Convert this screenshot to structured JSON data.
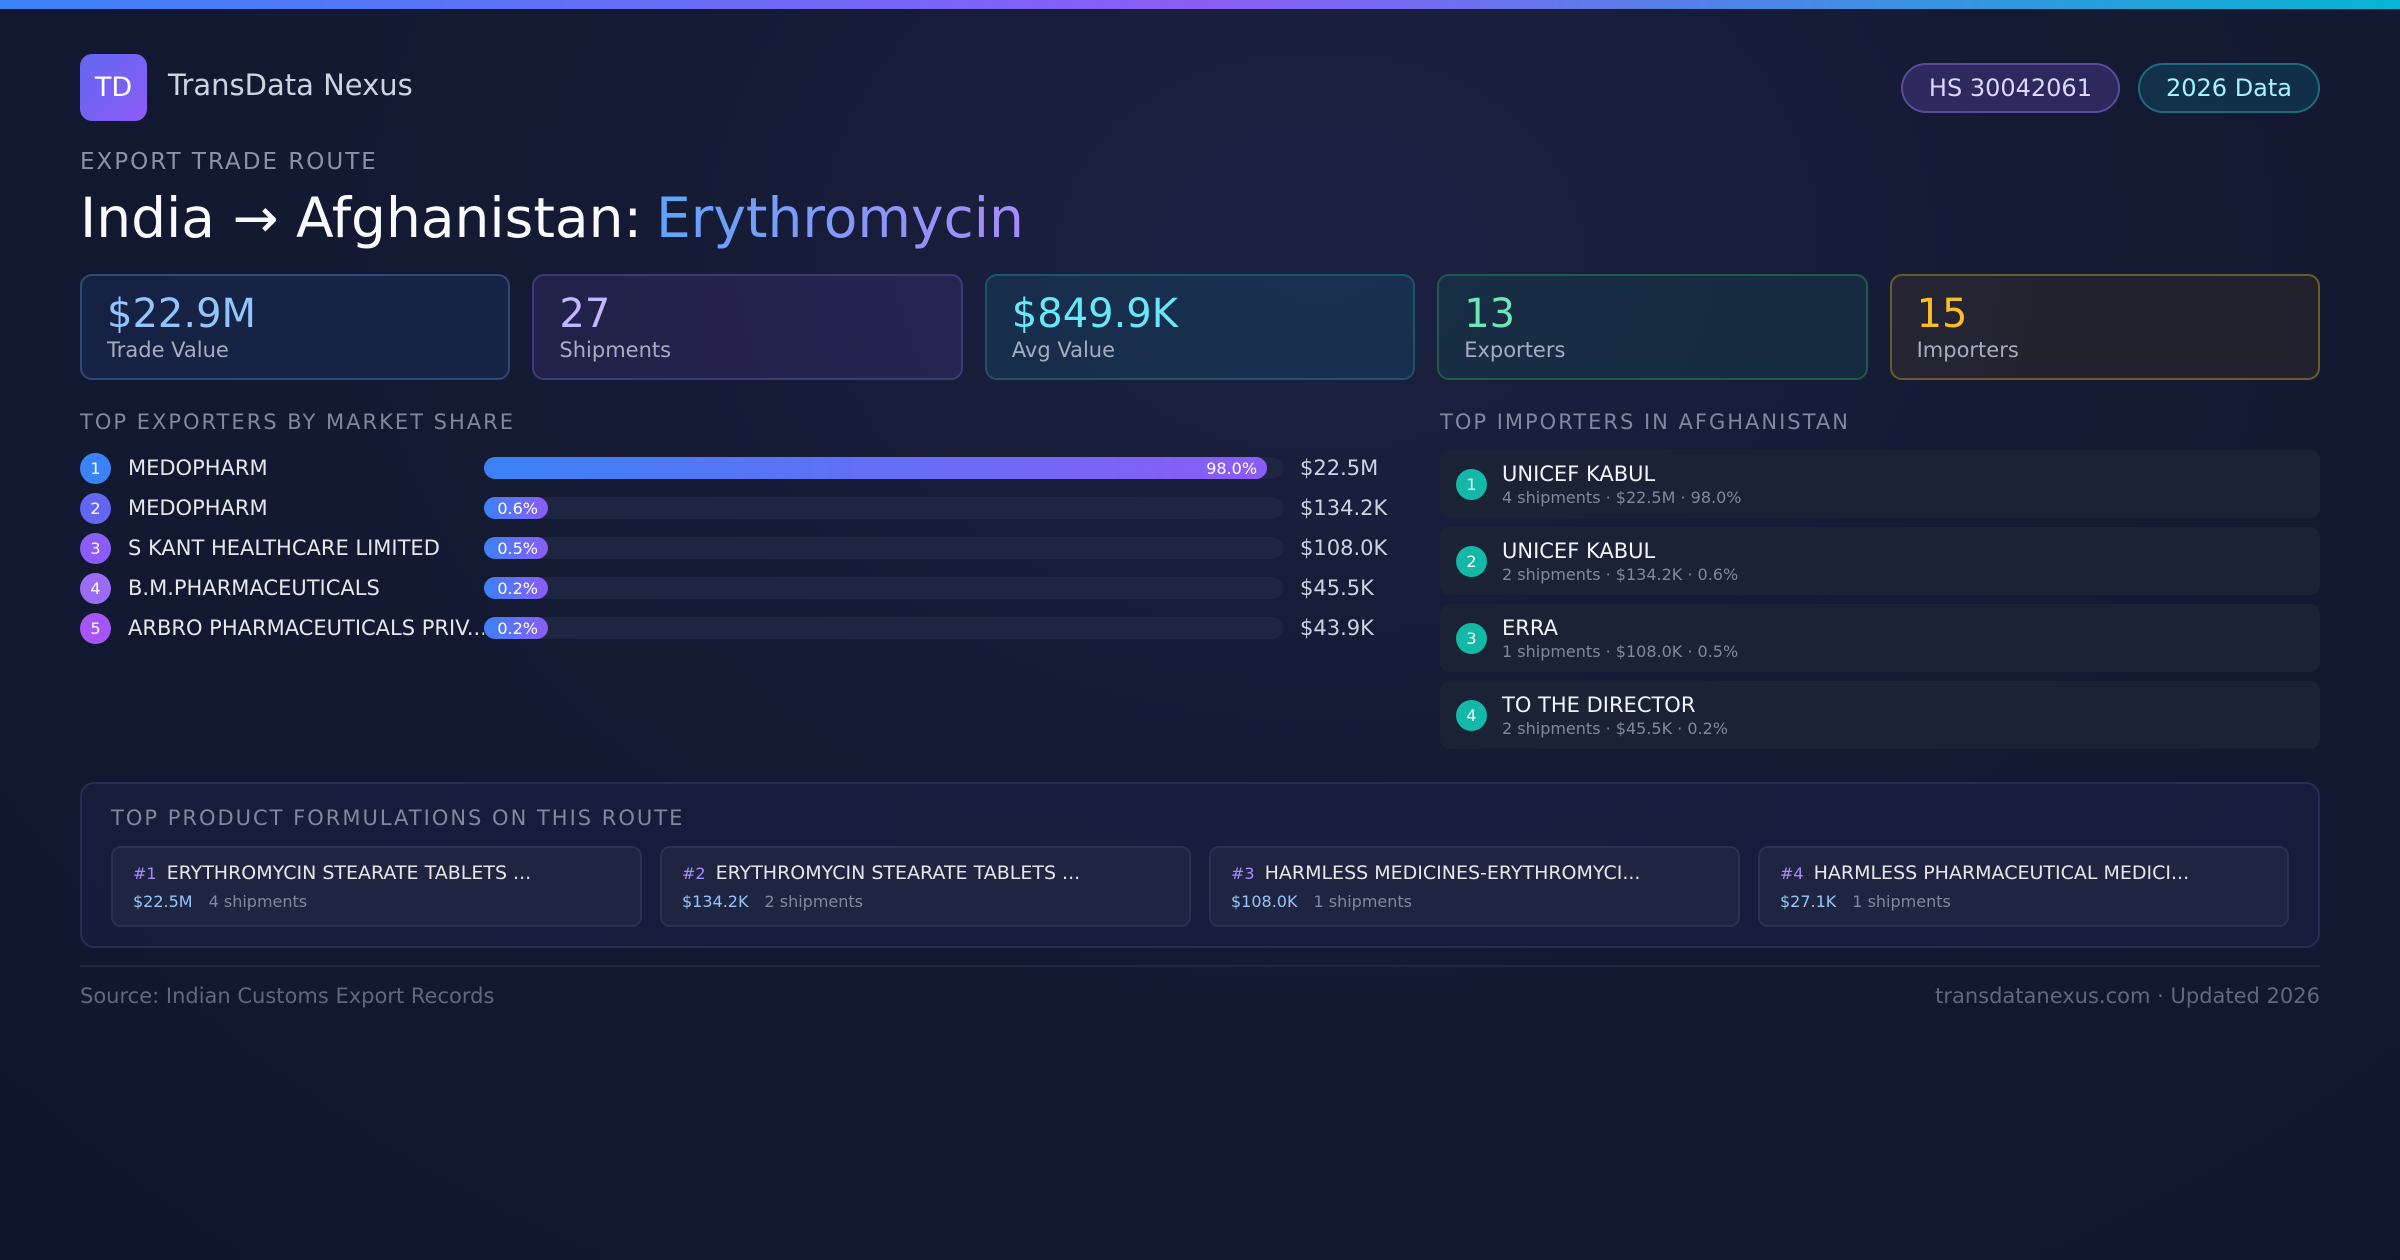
{
  "header": {
    "logo": "TD",
    "brand": "TransData Nexus",
    "badges": [
      "HS 30042061",
      "2026 Data"
    ]
  },
  "route": {
    "eyebrow": "EXPORT TRADE ROUTE",
    "title": "India → Afghanistan:",
    "product": "Erythromycin"
  },
  "stats": [
    {
      "value": "$22.9M",
      "label": "Trade Value"
    },
    {
      "value": "27",
      "label": "Shipments"
    },
    {
      "value": "$849.9K",
      "label": "Avg Value"
    },
    {
      "value": "13",
      "label": "Exporters"
    },
    {
      "value": "15",
      "label": "Importers"
    }
  ],
  "exporters": {
    "heading": "TOP EXPORTERS BY MARKET SHARE",
    "rows": [
      {
        "rank": "1",
        "name": "MEDOPHARM",
        "share": 98.0,
        "share_label": "98.0%",
        "value": "$22.5M"
      },
      {
        "rank": "2",
        "name": "MEDOPHARM",
        "share": 0.6,
        "share_label": "0.6%",
        "value": "$134.2K"
      },
      {
        "rank": "3",
        "name": "S KANT HEALTHCARE LIMITED",
        "share": 0.5,
        "share_label": "0.5%",
        "value": "$108.0K"
      },
      {
        "rank": "4",
        "name": "B.M.PHARMACEUTICALS",
        "share": 0.2,
        "share_label": "0.2%",
        "value": "$45.5K"
      },
      {
        "rank": "5",
        "name": "ARBRO PHARMACEUTICALS PRIV...",
        "share": 0.2,
        "share_label": "0.2%",
        "value": "$43.9K"
      }
    ]
  },
  "importers": {
    "heading": "TOP IMPORTERS IN AFGHANISTAN",
    "rows": [
      {
        "rank": "1",
        "name": "UNICEF KABUL",
        "detail": "4 shipments · $22.5M · 98.0%"
      },
      {
        "rank": "2",
        "name": "UNICEF KABUL",
        "detail": "2 shipments · $134.2K · 0.6%"
      },
      {
        "rank": "3",
        "name": "ERRA",
        "detail": "1 shipments · $108.0K · 0.5%"
      },
      {
        "rank": "4",
        "name": "TO THE DIRECTOR",
        "detail": "2 shipments · $45.5K · 0.2%"
      }
    ]
  },
  "products": {
    "heading": "TOP PRODUCT FORMULATIONS ON THIS ROUTE",
    "items": [
      {
        "rank": "#1",
        "name": "ERYTHROMYCIN STEARATE TABLETS ...",
        "value": "$22.5M",
        "shipments": "4 shipments"
      },
      {
        "rank": "#2",
        "name": "ERYTHROMYCIN STEARATE TABLETS ...",
        "value": "$134.2K",
        "shipments": "2 shipments"
      },
      {
        "rank": "#3",
        "name": "HARMLESS MEDICINES-ERYTHROMYCI...",
        "value": "$108.0K",
        "shipments": "1 shipments"
      },
      {
        "rank": "#4",
        "name": "HARMLESS PHARMACEUTICAL MEDICI...",
        "value": "$27.1K",
        "shipments": "1 shipments"
      }
    ]
  },
  "footer": {
    "source": "Source: Indian Customs Export Records",
    "site": "transdatanexus.com · Updated 2026"
  }
}
